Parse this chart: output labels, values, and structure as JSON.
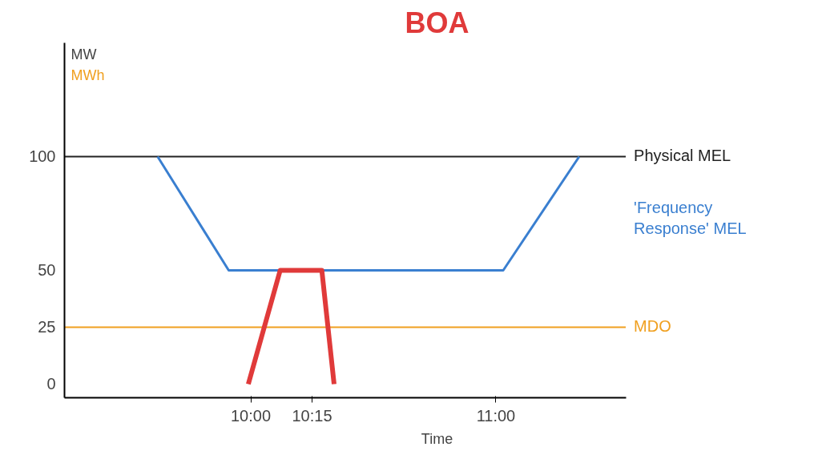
{
  "chart_data": {
    "type": "line",
    "title": "BOA",
    "xlabel": "Time",
    "ylabel": "MW",
    "annotations": [
      "MWh"
    ],
    "xlim": [
      9.24,
      11.53
    ],
    "xticks": [
      {
        "value": 10,
        "label": "10:00"
      },
      {
        "value": 10.25,
        "label": "10:15"
      },
      {
        "value": 11,
        "label": "11:00"
      }
    ],
    "ylim": [
      -6,
      150
    ],
    "yticks": [
      0,
      25,
      50,
      100
    ],
    "series": [
      {
        "name": "'Frequency Response' MEL",
        "color": "#3a7fd0",
        "x": [
          9.62,
          9.91,
          11.03,
          11.34
        ],
        "values": [
          100,
          50,
          50,
          100
        ]
      },
      {
        "color": "#e03a3a",
        "x": [
          9.99,
          10.12,
          10.29,
          10.34
        ],
        "values": [
          0,
          50,
          50,
          0
        ]
      }
    ],
    "ref_lines": [
      {
        "axis": "y",
        "value": 100,
        "label": "Physical MEL",
        "color": "#222222"
      },
      {
        "axis": "y",
        "value": 25,
        "label": "MDO",
        "color": "#f0a020"
      }
    ],
    "grid": false
  }
}
